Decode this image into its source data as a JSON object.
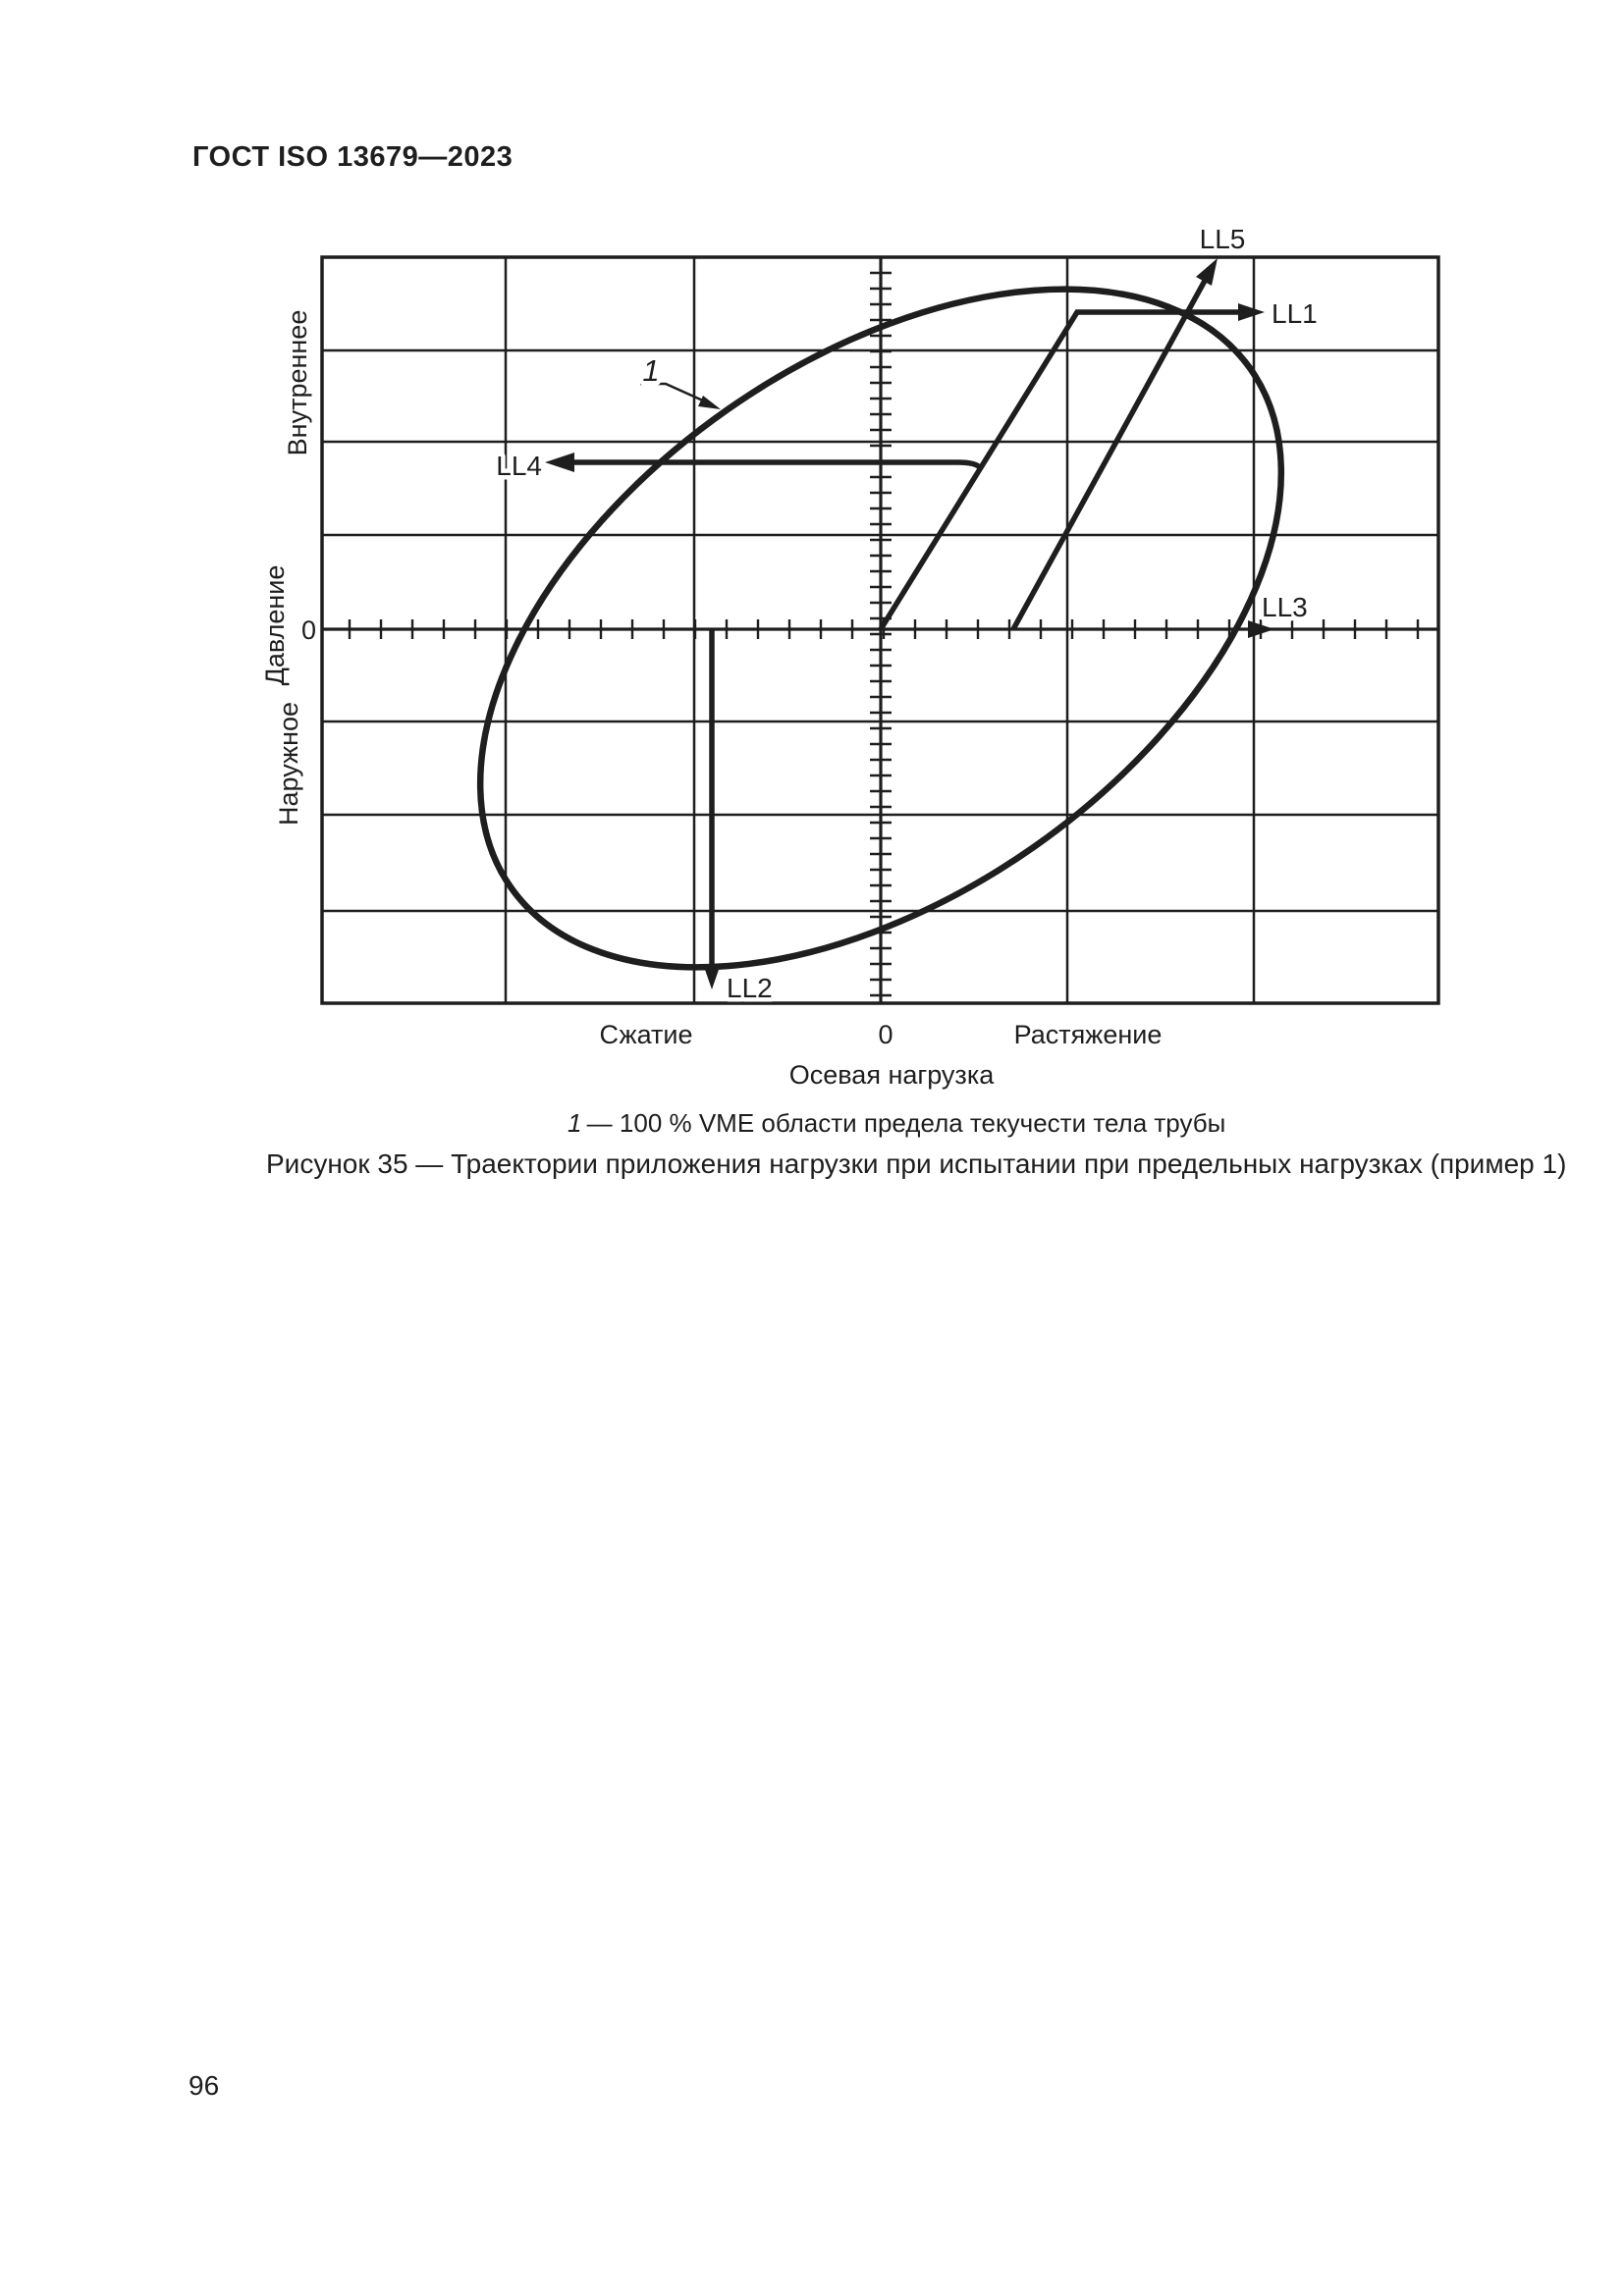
{
  "page": {
    "header": "ГОСТ ISO 13679—2023",
    "page_number": "96"
  },
  "figure": {
    "callout": {
      "ref": "1"
    },
    "load_lines": {
      "ll1": "LL1",
      "ll2": "LL2",
      "ll3": "LL3",
      "ll4": "LL4",
      "ll5": "LL5"
    },
    "y_axis": {
      "title": "Давление",
      "upper_label": "Внутреннее",
      "lower_label": "Наружное",
      "zero": "0"
    },
    "x_axis": {
      "title": "Осевая нагрузка",
      "negative_label": "Сжатие",
      "positive_label": "Растяжение",
      "zero": "0"
    },
    "legend": {
      "ref": "1",
      "text": " — 100 % VME области предела текучести тела трубы"
    },
    "caption": "Рисунок 35 — Траектории приложения нагрузки при испытании при предельных нагрузках (пример 1)"
  },
  "colors": {
    "ink": "#1e1e1e",
    "paper": "#ffffff"
  }
}
